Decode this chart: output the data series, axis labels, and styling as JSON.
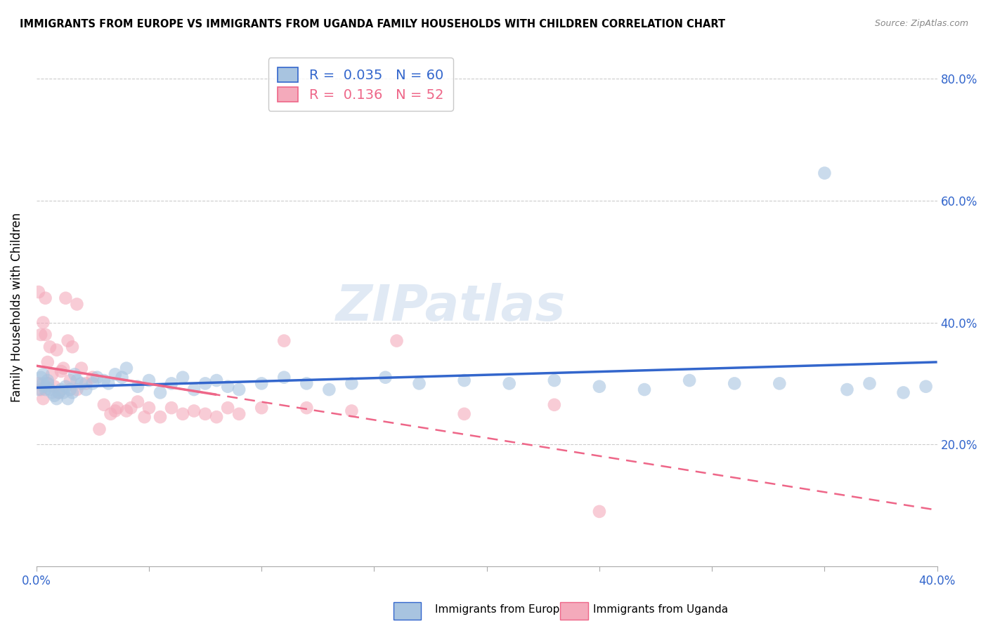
{
  "title": "IMMIGRANTS FROM EUROPE VS IMMIGRANTS FROM UGANDA FAMILY HOUSEHOLDS WITH CHILDREN CORRELATION CHART",
  "source": "Source: ZipAtlas.com",
  "ylabel": "Family Households with Children",
  "xmin": 0.0,
  "xmax": 0.4,
  "ymin": 0.0,
  "ymax": 0.85,
  "ytick_positions": [
    0.2,
    0.4,
    0.6,
    0.8
  ],
  "ytick_labels": [
    "20.0%",
    "40.0%",
    "60.0%",
    "80.0%"
  ],
  "xtick_positions": [
    0.0,
    0.05,
    0.1,
    0.15,
    0.2,
    0.25,
    0.3,
    0.35,
    0.4
  ],
  "xtick_labels": [
    "0.0%",
    "",
    "",
    "",
    "",
    "",
    "",
    "",
    "40.0%"
  ],
  "legend_R1": "R =  0.035",
  "legend_N1": "N = 60",
  "legend_R2": "R =  0.136",
  "legend_N2": "N = 52",
  "color_europe": "#A8C4E0",
  "color_uganda": "#F4AABB",
  "color_europe_line": "#3366CC",
  "color_uganda_line": "#EE6688",
  "watermark": "ZIPatlas",
  "europe_x": [
    0.001,
    0.002,
    0.003,
    0.003,
    0.004,
    0.004,
    0.005,
    0.005,
    0.006,
    0.007,
    0.008,
    0.009,
    0.01,
    0.011,
    0.012,
    0.013,
    0.014,
    0.015,
    0.016,
    0.017,
    0.018,
    0.02,
    0.022,
    0.025,
    0.027,
    0.03,
    0.032,
    0.035,
    0.038,
    0.04,
    0.045,
    0.05,
    0.055,
    0.06,
    0.065,
    0.07,
    0.075,
    0.08,
    0.085,
    0.09,
    0.1,
    0.11,
    0.12,
    0.13,
    0.14,
    0.155,
    0.17,
    0.19,
    0.21,
    0.23,
    0.25,
    0.27,
    0.29,
    0.31,
    0.33,
    0.35,
    0.36,
    0.37,
    0.385,
    0.395
  ],
  "europe_y": [
    0.29,
    0.31,
    0.3,
    0.315,
    0.29,
    0.295,
    0.3,
    0.305,
    0.29,
    0.285,
    0.28,
    0.275,
    0.285,
    0.29,
    0.285,
    0.295,
    0.275,
    0.29,
    0.285,
    0.315,
    0.305,
    0.3,
    0.29,
    0.3,
    0.31,
    0.305,
    0.3,
    0.315,
    0.31,
    0.325,
    0.295,
    0.305,
    0.285,
    0.3,
    0.31,
    0.29,
    0.3,
    0.305,
    0.295,
    0.29,
    0.3,
    0.31,
    0.3,
    0.29,
    0.3,
    0.31,
    0.3,
    0.305,
    0.3,
    0.305,
    0.295,
    0.29,
    0.305,
    0.3,
    0.3,
    0.645,
    0.29,
    0.3,
    0.285,
    0.295
  ],
  "uganda_x": [
    0.001,
    0.001,
    0.002,
    0.002,
    0.003,
    0.003,
    0.004,
    0.004,
    0.005,
    0.005,
    0.006,
    0.007,
    0.008,
    0.009,
    0.01,
    0.011,
    0.012,
    0.013,
    0.014,
    0.015,
    0.016,
    0.018,
    0.02,
    0.022,
    0.025,
    0.028,
    0.03,
    0.033,
    0.036,
    0.04,
    0.045,
    0.05,
    0.055,
    0.06,
    0.065,
    0.07,
    0.075,
    0.08,
    0.085,
    0.09,
    0.1,
    0.11,
    0.12,
    0.14,
    0.16,
    0.19,
    0.23,
    0.25,
    0.035,
    0.042,
    0.048,
    0.018
  ],
  "uganda_y": [
    0.3,
    0.45,
    0.29,
    0.38,
    0.275,
    0.4,
    0.38,
    0.44,
    0.3,
    0.335,
    0.36,
    0.315,
    0.295,
    0.355,
    0.285,
    0.32,
    0.325,
    0.44,
    0.37,
    0.305,
    0.36,
    0.29,
    0.325,
    0.3,
    0.31,
    0.225,
    0.265,
    0.25,
    0.26,
    0.255,
    0.27,
    0.26,
    0.245,
    0.26,
    0.25,
    0.255,
    0.25,
    0.245,
    0.26,
    0.25,
    0.26,
    0.37,
    0.26,
    0.255,
    0.37,
    0.25,
    0.265,
    0.09,
    0.255,
    0.26,
    0.245,
    0.43
  ]
}
